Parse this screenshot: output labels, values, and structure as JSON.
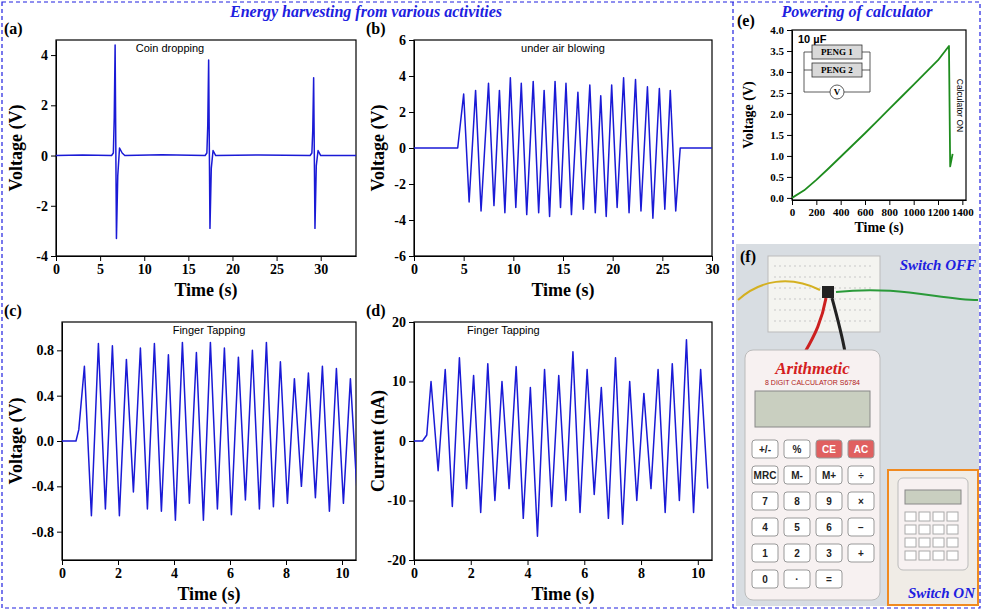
{
  "sections": [
    "Energy harvesting from various activities",
    "Powering of calculator"
  ],
  "chart_data": [
    {
      "type": "line",
      "panel": "(a)",
      "title": "Coin dropping",
      "x_label": "Time (s)",
      "y_label": "Voltage (V)",
      "color": "#1a1ad6",
      "x": [
        0,
        3,
        6.3,
        6.5,
        6.6,
        6.7,
        6.85,
        7.0,
        7.2,
        7.5,
        7.8,
        12,
        16.9,
        17.1,
        17.2,
        17.3,
        17.45,
        17.6,
        17.8,
        18.1,
        23,
        28.8,
        29.0,
        29.1,
        29.2,
        29.35,
        29.5,
        29.7,
        30.0,
        34
      ],
      "values": [
        0,
        0.02,
        0,
        0.1,
        1.5,
        4.4,
        -3.3,
        -0.8,
        0.3,
        0.1,
        0,
        0.03,
        0,
        0.1,
        1.2,
        3.8,
        -2.9,
        -0.5,
        0.2,
        0,
        0.02,
        0,
        0.1,
        1.0,
        3.1,
        -2.9,
        -0.4,
        0.2,
        0,
        0
      ],
      "xlim": [
        0,
        34
      ],
      "ylim": [
        -4,
        4.6
      ],
      "xticks": [
        0,
        5,
        10,
        15,
        20,
        25,
        30
      ],
      "yticks": [
        -4,
        -2,
        0,
        2,
        4
      ]
    },
    {
      "type": "line",
      "panel": "(b)",
      "title": "under air blowing",
      "x_label": "Time (s)",
      "y_label": "Voltage (V)",
      "color": "#1a1ad6",
      "x": [
        0,
        4.4,
        5.0,
        5.55,
        6.2,
        6.75,
        7.5,
        8.05,
        8.6,
        9.15,
        9.7,
        10.25,
        10.8,
        11.35,
        12.0,
        12.55,
        13.1,
        13.65,
        14.2,
        14.75,
        15.3,
        15.85,
        16.5,
        17.05,
        17.7,
        18.25,
        18.8,
        19.35,
        19.9,
        20.45,
        21.1,
        21.65,
        22.3,
        22.85,
        23.5,
        24.05,
        24.7,
        25.25,
        25.8,
        26.35,
        26.8,
        30
      ],
      "values": [
        0,
        0,
        3.0,
        -3.0,
        3.2,
        -3.5,
        3.6,
        -3.2,
        3.2,
        -3.6,
        3.9,
        -3.3,
        3.6,
        -3.7,
        3.7,
        -3.6,
        3.2,
        -3.8,
        3.7,
        -3.3,
        3.6,
        -3.7,
        3.1,
        -3.4,
        3.5,
        -3.6,
        2.9,
        -3.8,
        3.5,
        -3.3,
        3.9,
        -3.6,
        3.8,
        -3.5,
        3.4,
        -3.9,
        3.3,
        -3.4,
        3.2,
        -3.5,
        0,
        0
      ],
      "xlim": [
        0,
        30
      ],
      "ylim": [
        -6,
        6
      ],
      "xticks": [
        0,
        5,
        10,
        15,
        20,
        25,
        30
      ],
      "yticks": [
        -6,
        -4,
        -2,
        0,
        2,
        4,
        6
      ]
    },
    {
      "type": "line",
      "panel": "(c)",
      "title": "Finger Tapping",
      "x_label": "Time (s)",
      "y_label": "Voltage (V)",
      "color": "#1a1ad6",
      "x": [
        0,
        0.5,
        0.6,
        0.8,
        1.05,
        1.3,
        1.55,
        1.8,
        2.05,
        2.3,
        2.55,
        2.8,
        3.05,
        3.3,
        3.55,
        3.8,
        4.05,
        4.3,
        4.55,
        4.8,
        5.05,
        5.3,
        5.55,
        5.8,
        6.05,
        6.3,
        6.55,
        6.8,
        7.05,
        7.3,
        7.55,
        7.8,
        8.05,
        8.3,
        8.55,
        8.8,
        9.05,
        9.3,
        9.55,
        9.8,
        10.05,
        10.3,
        10.55
      ],
      "values": [
        0,
        0,
        0.1,
        0.66,
        -0.66,
        0.86,
        -0.6,
        0.84,
        -0.66,
        0.72,
        -0.45,
        0.82,
        -0.6,
        0.86,
        -0.62,
        0.76,
        -0.7,
        0.87,
        -0.55,
        0.78,
        -0.7,
        0.87,
        -0.6,
        0.82,
        -0.65,
        0.74,
        -0.52,
        0.8,
        -0.6,
        0.87,
        -0.58,
        0.7,
        -0.55,
        0.55,
        -0.4,
        0.6,
        -0.5,
        0.66,
        -0.62,
        0.64,
        -0.55,
        0.55,
        -0.5
      ],
      "xlim": [
        0,
        10.5
      ],
      "ylim": [
        -1.05,
        1.05
      ],
      "xticks": [
        0,
        2,
        4,
        6,
        8,
        10
      ],
      "yticks": [
        -0.8,
        -0.4,
        {
          "value": 0,
          "label": "0.0"
        },
        0.4,
        0.8
      ]
    },
    {
      "type": "line",
      "panel": "(d)",
      "title": "Finger Tapping",
      "x_label": "Time (s)",
      "y_label": "Current (nA)",
      "color": "#1a1ad6",
      "x": [
        0,
        0.3,
        0.45,
        0.6,
        0.85,
        1.1,
        1.35,
        1.6,
        1.85,
        2.1,
        2.35,
        2.6,
        2.85,
        3.1,
        3.35,
        3.6,
        3.85,
        4.1,
        4.35,
        4.6,
        4.85,
        5.1,
        5.35,
        5.6,
        5.85,
        6.1,
        6.35,
        6.6,
        6.85,
        7.1,
        7.35,
        7.6,
        7.85,
        8.1,
        8.35,
        8.6,
        8.85,
        9.1,
        9.35,
        9.6,
        9.85,
        10.1,
        10.35
      ],
      "values": [
        0,
        0,
        1,
        10,
        -5,
        12,
        -11,
        14,
        -8,
        11,
        -12,
        13,
        -10,
        10,
        -8,
        12.5,
        -13,
        9,
        -16,
        12,
        -11,
        11,
        -10,
        15,
        -12,
        12,
        -9,
        9,
        -13,
        14,
        -14,
        10,
        -10,
        8,
        -8,
        12,
        -12,
        13,
        -10,
        17,
        -12,
        12,
        -8
      ],
      "xlim": [
        0,
        10.5
      ],
      "ylim": [
        -20,
        20
      ],
      "xticks": [
        0,
        2,
        4,
        6,
        8,
        10
      ],
      "yticks": [
        -20,
        -10,
        0,
        10,
        20
      ]
    },
    {
      "type": "line",
      "panel": "(e)",
      "x_label": "Time (s)",
      "y_label": "Voltage (V)",
      "color": "#1e8c1e",
      "annotations": [
        "10 µF",
        "Calculator ON"
      ],
      "circuit": [
        "PENG 1",
        "PENG 2",
        "V"
      ],
      "x": [
        0,
        100,
        200,
        300,
        400,
        500,
        600,
        700,
        800,
        900,
        1000,
        1100,
        1200,
        1290,
        1300,
        1320
      ],
      "values": [
        0,
        0.18,
        0.43,
        0.7,
        0.98,
        1.26,
        1.54,
        1.83,
        2.12,
        2.41,
        2.7,
        2.99,
        3.28,
        3.62,
        0.75,
        1.05
      ],
      "xlim": [
        0,
        1430
      ],
      "ylim": [
        -0.05,
        4.0
      ],
      "xticks": [
        0,
        200,
        400,
        600,
        800,
        1000,
        1200,
        1400
      ],
      "yticks": [
        {
          "value": 0,
          "label": "0.0"
        },
        0.5,
        {
          "value": 1,
          "label": "1.0"
        },
        1.5,
        {
          "value": 2,
          "label": "2.0"
        },
        2.5,
        {
          "value": 3,
          "label": "3.0"
        },
        3.5,
        {
          "value": 4,
          "label": "4.0"
        }
      ]
    }
  ],
  "photo": {
    "panel": "(f)",
    "labels": [
      "Switch OFF",
      "Switch ON"
    ],
    "calculator": {
      "brand": "Arithmetic",
      "model": "8 DIGIT CALCULATOR S6784",
      "keys": [
        [
          "+/-",
          "%",
          "CE",
          "AC"
        ],
        [
          "MRC",
          "M-",
          "M+",
          "÷"
        ],
        [
          "7",
          "8",
          "9",
          "×"
        ],
        [
          "4",
          "5",
          "6",
          "−"
        ],
        [
          "1",
          "2",
          "3",
          "+"
        ],
        [
          "0",
          "·",
          "="
        ]
      ]
    }
  }
}
